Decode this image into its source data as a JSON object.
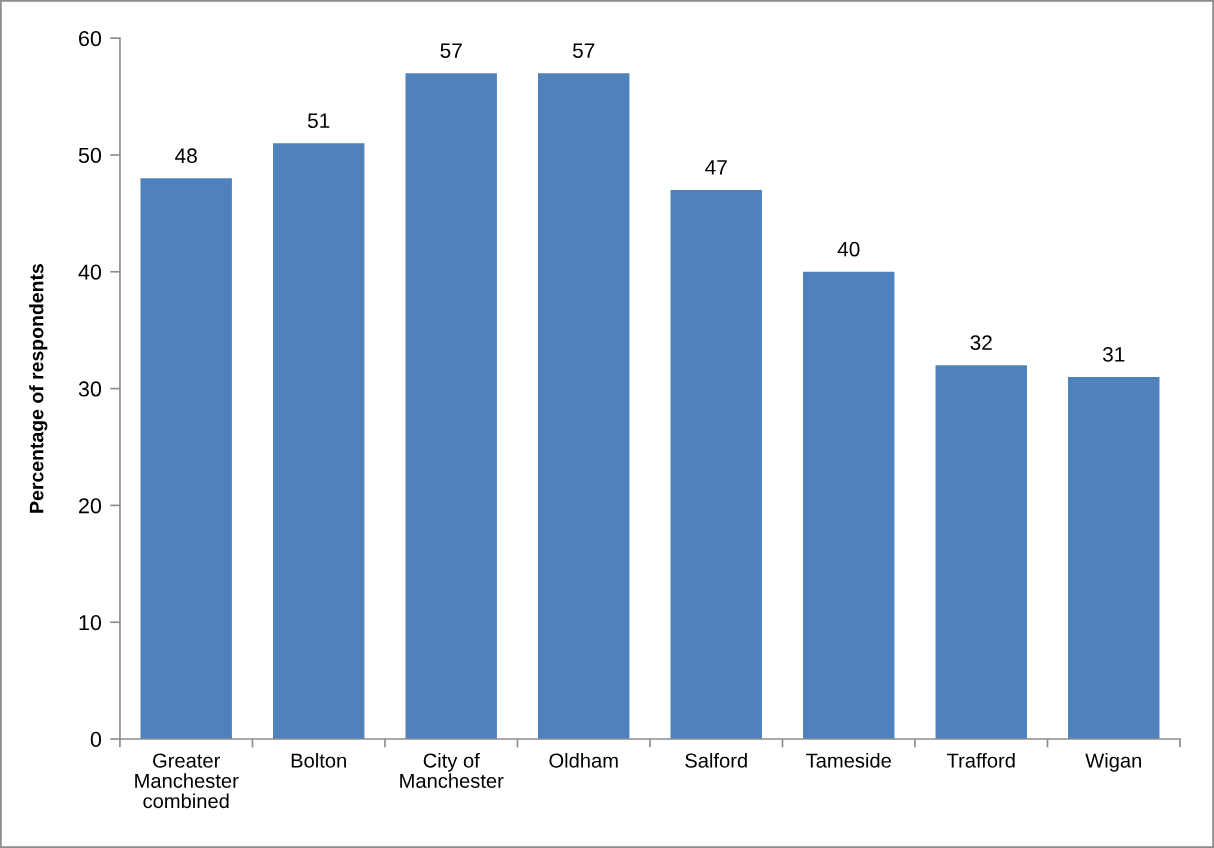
{
  "chart_data": {
    "type": "bar",
    "ylabel": "Percentage of respondents",
    "categories": [
      "Greater\nManchester\ncombined",
      "Bolton",
      "City of\nManchester",
      "Oldham",
      "Salford",
      "Tameside",
      "Trafford",
      "Wigan"
    ],
    "values": [
      48,
      51,
      57,
      57,
      47,
      40,
      32,
      31
    ],
    "color": "#4f81bd",
    "ylim": [
      0,
      60
    ],
    "yticks": [
      0,
      10,
      20,
      30,
      40,
      50,
      60
    ],
    "data_labels": true
  }
}
